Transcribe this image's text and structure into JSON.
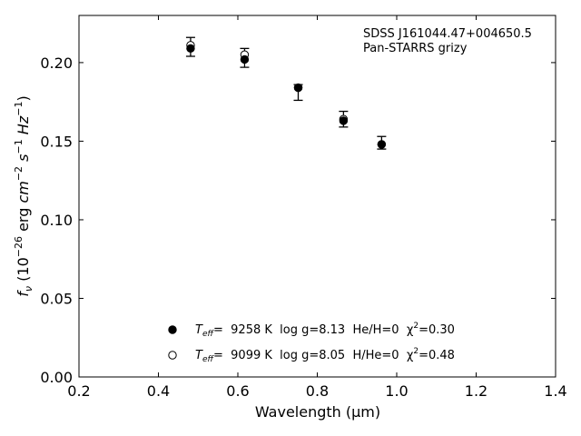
{
  "chart_data": {
    "type": "scatter",
    "xlabel": "Wavelength (μm)",
    "ylabel": "f_ν (10^−26 erg cm^−2 s^−1 Hz^−1)",
    "xlim": [
      0.2,
      1.4
    ],
    "ylim": [
      0.0,
      0.23
    ],
    "xticks": [
      "0.2",
      "0.4",
      "0.6",
      "0.8",
      "1.0",
      "1.2",
      "1.4"
    ],
    "yticks": [
      "0.00",
      "0.05",
      "0.10",
      "0.15",
      "0.20"
    ],
    "annotation": [
      "SDSS J161044.47+004650.5",
      "Pan-STARRS grizy"
    ],
    "observed": {
      "x": [
        0.481,
        0.617,
        0.752,
        0.866,
        0.962
      ],
      "y": [
        0.21,
        0.203,
        0.181,
        0.164,
        0.149
      ],
      "err": [
        0.006,
        0.006,
        0.005,
        0.005,
        0.004
      ]
    },
    "series": [
      {
        "name": "T_eff= 9258 K log g=8.13 He/H=0 χ²=0.30",
        "marker": "filled",
        "x": [
          0.481,
          0.617,
          0.752,
          0.866,
          0.962
        ],
        "y": [
          0.209,
          0.202,
          0.184,
          0.163,
          0.148
        ]
      },
      {
        "name": "T_eff= 9099 K log g=8.05 H/He=0 χ²=0.48",
        "marker": "open",
        "x": [
          0.481,
          0.617,
          0.752,
          0.866,
          0.962
        ],
        "y": [
          0.211,
          0.205,
          0.184,
          0.164,
          0.148
        ]
      }
    ],
    "legend_position": "bottom-center",
    "grid": false,
    "legend": [
      {
        "prefix": "T",
        "sub": "eff",
        "text": "=  9258 K  log g=8.13  He/H=0  χ",
        "sup": "2",
        "tail": "=0.30"
      },
      {
        "prefix": "T",
        "sub": "eff",
        "text": "=  9099 K  log g=8.05  H/He=0  χ",
        "sup": "2",
        "tail": "=0.48"
      }
    ]
  }
}
